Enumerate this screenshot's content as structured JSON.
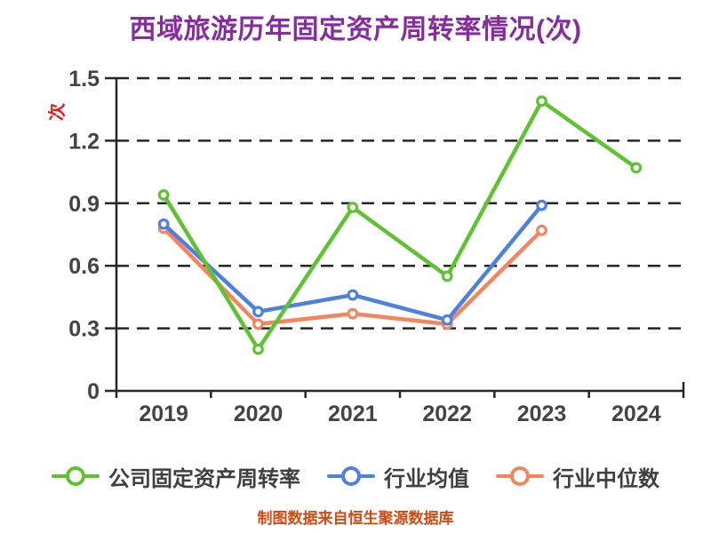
{
  "title": "西域旅游历年固定资产周转率情况(次)",
  "footer": "制图数据来自恒生聚源数据库",
  "colors": {
    "title": "#852d9e",
    "footer": "#d14a12",
    "axis": "#262626",
    "grid": "#262626",
    "tick_label": "#434343",
    "legend_label": "#3f3f3f",
    "ylabel_red": "#e02020",
    "series_green": "#5ec232",
    "series_blue": "#4e80e2",
    "series_orange": "#f5855c",
    "marker_fill": "#ffffff"
  },
  "chart_data": {
    "type": "line",
    "title": "西域旅游历年固定资产周转率情况(次)",
    "categories": [
      "2019",
      "2020",
      "2021",
      "2022",
      "2023",
      "2024"
    ],
    "series": [
      {
        "key": "company-fixed-asset-turnover",
        "name": "公司固定资产周转率",
        "color_key": "series_green",
        "values": [
          0.94,
          0.2,
          0.88,
          0.55,
          1.39,
          1.07
        ]
      },
      {
        "key": "industry-mean",
        "name": "行业均值",
        "color_key": "series_blue",
        "values": [
          0.8,
          0.38,
          0.46,
          0.34,
          0.89,
          null
        ]
      },
      {
        "key": "industry-median",
        "name": "行业中位数",
        "color_key": "series_orange",
        "values": [
          0.78,
          0.32,
          0.37,
          0.32,
          0.77,
          null
        ]
      }
    ],
    "ylabel": "次",
    "xlabel": "",
    "ylim": [
      0,
      1.5
    ],
    "yticks": [
      {
        "label": "0",
        "value": 0
      },
      {
        "label": "0.3",
        "value": 0.3
      },
      {
        "label": "0.6",
        "value": 0.6
      },
      {
        "label": "0.9",
        "value": 0.9
      },
      {
        "label": "1.2",
        "value": 1.2
      },
      {
        "label": "1.5",
        "value": 1.5
      }
    ],
    "grid": "horizontal dashed",
    "legend_position": "bottom"
  }
}
